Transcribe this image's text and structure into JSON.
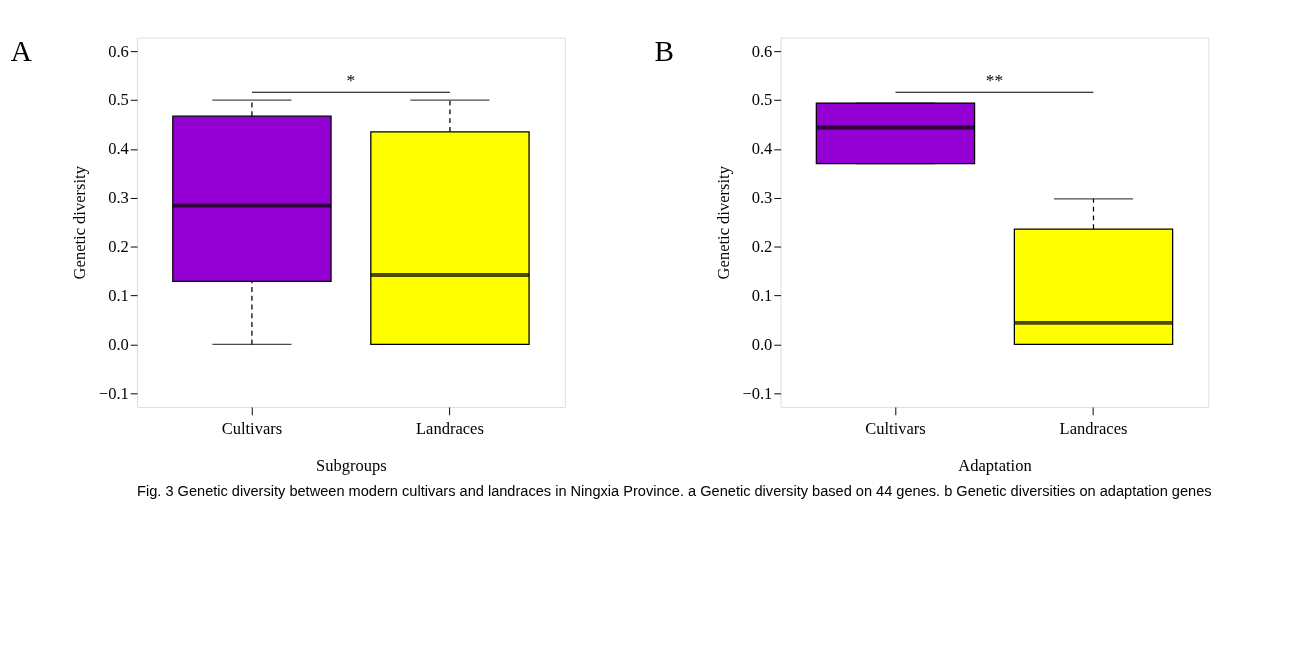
{
  "chart_data": [
    {
      "type": "box",
      "title": "A",
      "xlabel": "Subgroups",
      "ylabel": "Genetic diversity",
      "categories": [
        "Cultivars",
        "Landraces"
      ],
      "colors": [
        "#9400d3",
        "#ffff00"
      ],
      "boxes": [
        {
          "low": 0.0,
          "q1": 0.129,
          "median": 0.284,
          "q3": 0.467,
          "high": 0.5
        },
        {
          "low": 0.0,
          "q1": 0.0,
          "median": 0.142,
          "q3": 0.435,
          "high": 0.5
        }
      ],
      "ylim": [
        -0.128,
        0.628
      ],
      "yticks": [
        -0.1,
        {
          "value": 0,
          "label": "0.0"
        },
        0.1,
        0.2,
        0.3,
        0.4,
        0.5,
        0.6
      ],
      "grid": false,
      "annotations": [
        "*",
        "Fig. 3 Genetic diversity between modern cultivars and landraces in Ningxia Province. a Genetic diversity based on 44 genes. b Genetic diversities on adaptation genes"
      ]
    },
    {
      "type": "box",
      "title": "B",
      "xlabel": "Adaptation",
      "ylabel": "Genetic diversity",
      "categories": [
        "Cultivars",
        "Landraces"
      ],
      "colors": [
        "#9400d3",
        "#ffff00"
      ],
      "boxes": [
        {
          "low": 0.37,
          "q1": 0.37,
          "median": 0.444,
          "q3": 0.494,
          "high": 0.494
        },
        {
          "low": 0.0,
          "q1": 0.0,
          "median": 0.044,
          "q3": 0.236,
          "high": 0.298
        }
      ],
      "ylim": [
        -0.128,
        0.628
      ],
      "yticks": [
        -0.1,
        {
          "value": 0,
          "label": "0.0"
        },
        0.1,
        0.2,
        0.3,
        0.4,
        0.5,
        0.6
      ],
      "grid": false,
      "annotations": [
        "**"
      ]
    }
  ]
}
